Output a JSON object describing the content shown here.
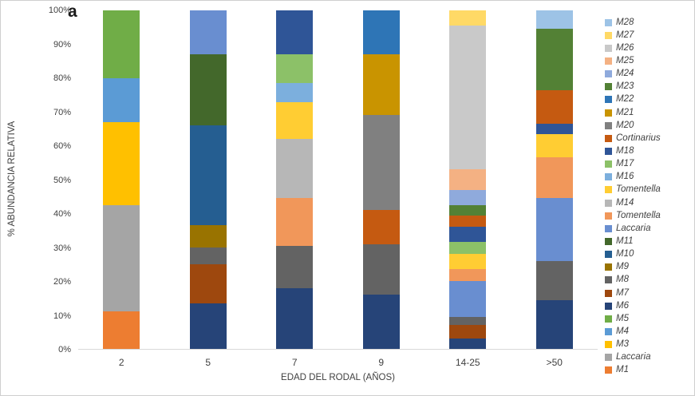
{
  "panel_label": "a",
  "chart_data": {
    "type": "bar",
    "stacked": true,
    "title": "",
    "xlabel": "EDAD DEL RODAL (AÑOS)",
    "ylabel": "% ABUNDANCIA RELATIVA",
    "ylim": [
      0,
      100
    ],
    "grid": false,
    "legend_position": "right",
    "y_ticks": [
      "100%",
      "90%",
      "80%",
      "70%",
      "60%",
      "50%",
      "40%",
      "30%",
      "20%",
      "10%",
      "0%"
    ],
    "categories": [
      "2",
      "5",
      "7",
      "9",
      "14-25",
      ">50"
    ],
    "series": [
      {
        "name": "M1",
        "color": "#ED7D31",
        "values": [
          11,
          0,
          0,
          0,
          0,
          0
        ]
      },
      {
        "name": "Laccaria",
        "color": "#A5A5A5",
        "values": [
          31.5,
          0,
          0,
          0,
          0,
          0
        ]
      },
      {
        "name": "M3",
        "color": "#FFC000",
        "values": [
          24.5,
          0,
          0,
          0,
          0,
          0
        ]
      },
      {
        "name": "M4",
        "color": "#5B9BD5",
        "values": [
          13,
          0,
          0,
          0,
          0,
          0
        ]
      },
      {
        "name": "M5",
        "color": "#70AD47",
        "values": [
          20,
          0,
          0,
          0,
          0,
          0
        ]
      },
      {
        "name": "M6",
        "color": "#264478",
        "values": [
          0,
          13.5,
          18,
          16,
          3,
          14.5
        ]
      },
      {
        "name": "M7",
        "color": "#9E480E",
        "values": [
          0,
          11.5,
          0,
          0,
          4,
          0
        ]
      },
      {
        "name": "M8",
        "color": "#636363",
        "values": [
          0,
          5,
          12.5,
          15,
          2.5,
          11.5
        ]
      },
      {
        "name": "M9",
        "color": "#997300",
        "values": [
          0,
          6.5,
          0,
          0,
          0,
          0
        ]
      },
      {
        "name": "M10",
        "color": "#255E91",
        "values": [
          0,
          29.5,
          0,
          0,
          0,
          0
        ]
      },
      {
        "name": "M11",
        "color": "#43682B",
        "values": [
          0,
          21,
          0,
          0,
          0,
          0
        ]
      },
      {
        "name": "Laccaria",
        "color": "#698ED0",
        "values": [
          0,
          13,
          0,
          0,
          10.5,
          18.5
        ]
      },
      {
        "name": "Tomentella",
        "color": "#F1975A",
        "values": [
          0,
          0,
          14,
          0,
          3.5,
          12
        ]
      },
      {
        "name": "M14",
        "color": "#B7B7B7",
        "values": [
          0,
          0,
          17.5,
          0,
          0,
          0
        ]
      },
      {
        "name": "Tomentella",
        "color": "#FFCD33",
        "values": [
          0,
          0,
          11,
          0,
          4.5,
          7
        ]
      },
      {
        "name": "M16",
        "color": "#7CAFDD",
        "values": [
          0,
          0,
          5.5,
          0,
          0,
          0
        ]
      },
      {
        "name": "M17",
        "color": "#8CC168",
        "values": [
          0,
          0,
          8.5,
          0,
          3.5,
          0
        ]
      },
      {
        "name": "M18",
        "color": "#2F5597",
        "values": [
          0,
          0,
          13,
          0,
          4.5,
          3
        ]
      },
      {
        "name": "Cortinarius",
        "color": "#C55A11",
        "values": [
          0,
          0,
          0,
          10,
          3.5,
          10
        ]
      },
      {
        "name": "M20",
        "color": "#808080",
        "values": [
          0,
          0,
          0,
          28,
          0,
          0
        ]
      },
      {
        "name": "M21",
        "color": "#C99400",
        "values": [
          0,
          0,
          0,
          18,
          0,
          0
        ]
      },
      {
        "name": "M22",
        "color": "#2E75B6",
        "values": [
          0,
          0,
          0,
          13,
          0,
          0
        ]
      },
      {
        "name": "M23",
        "color": "#538135",
        "values": [
          0,
          0,
          0,
          0,
          3,
          18
        ]
      },
      {
        "name": "M24",
        "color": "#8FAADC",
        "values": [
          0,
          0,
          0,
          0,
          4.5,
          0
        ]
      },
      {
        "name": "M25",
        "color": "#F4B183",
        "values": [
          0,
          0,
          0,
          0,
          6,
          0
        ]
      },
      {
        "name": "M26",
        "color": "#C9C9C9",
        "values": [
          0,
          0,
          0,
          0,
          42.5,
          0
        ]
      },
      {
        "name": "M27",
        "color": "#FFD966",
        "values": [
          0,
          0,
          0,
          0,
          4.5,
          0
        ]
      },
      {
        "name": "M28",
        "color": "#9DC3E6",
        "values": [
          0,
          0,
          0,
          0,
          0,
          5.5
        ]
      }
    ]
  }
}
